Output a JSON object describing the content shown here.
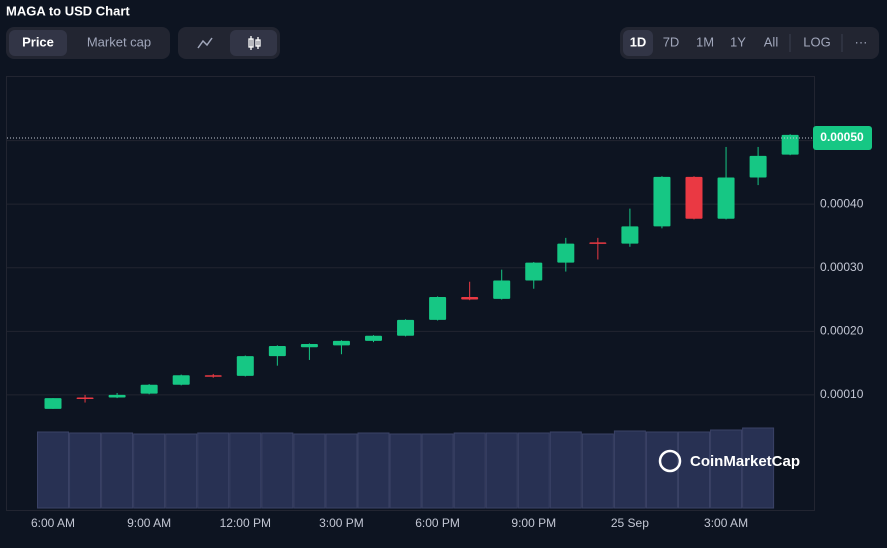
{
  "ui": {
    "title": "MAGA to USD Chart",
    "tabs": [
      "Price",
      "Market cap"
    ],
    "ranges": [
      "1D",
      "7D",
      "1M",
      "1Y",
      "All",
      "LOG"
    ],
    "more": "···",
    "watermark": "CoinMarketCap"
  },
  "chart_data": {
    "type": "candlestick",
    "categories": [
      "6:00 AM",
      null,
      null,
      "9:00 AM",
      null,
      null,
      "12:00 PM",
      null,
      null,
      "3:00 PM",
      null,
      null,
      "6:00 PM",
      null,
      null,
      "9:00 PM",
      null,
      null,
      "25 Sep",
      null,
      null,
      "3:00 AM",
      null,
      null
    ],
    "open": [
      7.8e-05,
      9.6e-05,
      9.6e-05,
      0.000102,
      0.000116,
      0.000131,
      0.00013,
      0.000161,
      0.000175,
      0.000178,
      0.000185,
      0.000193,
      0.000218,
      0.000254,
      0.000251,
      0.00028,
      0.000308,
      0.00034,
      0.000338,
      0.000365,
      0.000443,
      0.000377,
      0.000442,
      0.000478
    ],
    "high": [
      9.5e-05,
      0.0001,
      0.000103,
      0.000117,
      0.000132,
      0.000133,
      0.000162,
      0.000178,
      0.000181,
      0.000186,
      0.000194,
      0.000219,
      0.000255,
      0.000278,
      0.000297,
      0.000309,
      0.000347,
      0.000347,
      0.000393,
      0.000444,
      0.000444,
      0.00049,
      0.00049,
      0.00051
    ],
    "low": [
      7.8e-05,
      8.8e-05,
      9.5e-05,
      0.000101,
      0.000115,
      0.000127,
      0.000129,
      0.000146,
      0.000155,
      0.000164,
      0.000183,
      0.000192,
      0.000217,
      0.000249,
      0.00025,
      0.000267,
      0.000294,
      0.000313,
      0.000333,
      0.000362,
      0.000376,
      0.000376,
      0.00043,
      0.000477
    ],
    "close": [
      9.5e-05,
      9.5e-05,
      0.0001,
      0.000116,
      0.000131,
      0.000129,
      0.000161,
      0.000177,
      0.00018,
      0.000185,
      0.000193,
      0.000218,
      0.000254,
      0.00025,
      0.00028,
      0.000308,
      0.000338,
      0.000338,
      0.000365,
      0.000443,
      0.000377,
      0.000442,
      0.000476,
      0.000509
    ],
    "volume": [
      76,
      75,
      75,
      74,
      74,
      75,
      75,
      75,
      74,
      74,
      75,
      74,
      74,
      75,
      75,
      75,
      76,
      74,
      77,
      76,
      76,
      78,
      80,
      null
    ],
    "volume_lim": [
      0,
      100
    ],
    "up_color": "#16c784",
    "down_color": "#ea3943",
    "volume_color": "#283153",
    "current_price": {
      "value": 0.000504,
      "label": "0.00050"
    },
    "ylim": [
      -8.1e-05,
      0.0006
    ],
    "yticks": [
      {
        "value": 0.0001,
        "label": "0.00010"
      },
      {
        "value": 0.0002,
        "label": "0.00020"
      },
      {
        "value": 0.0003,
        "label": "0.00030"
      },
      {
        "value": 0.0004,
        "label": "0.00040"
      },
      {
        "value": 0.0005,
        "label": "0.00050"
      }
    ],
    "grid": true
  }
}
